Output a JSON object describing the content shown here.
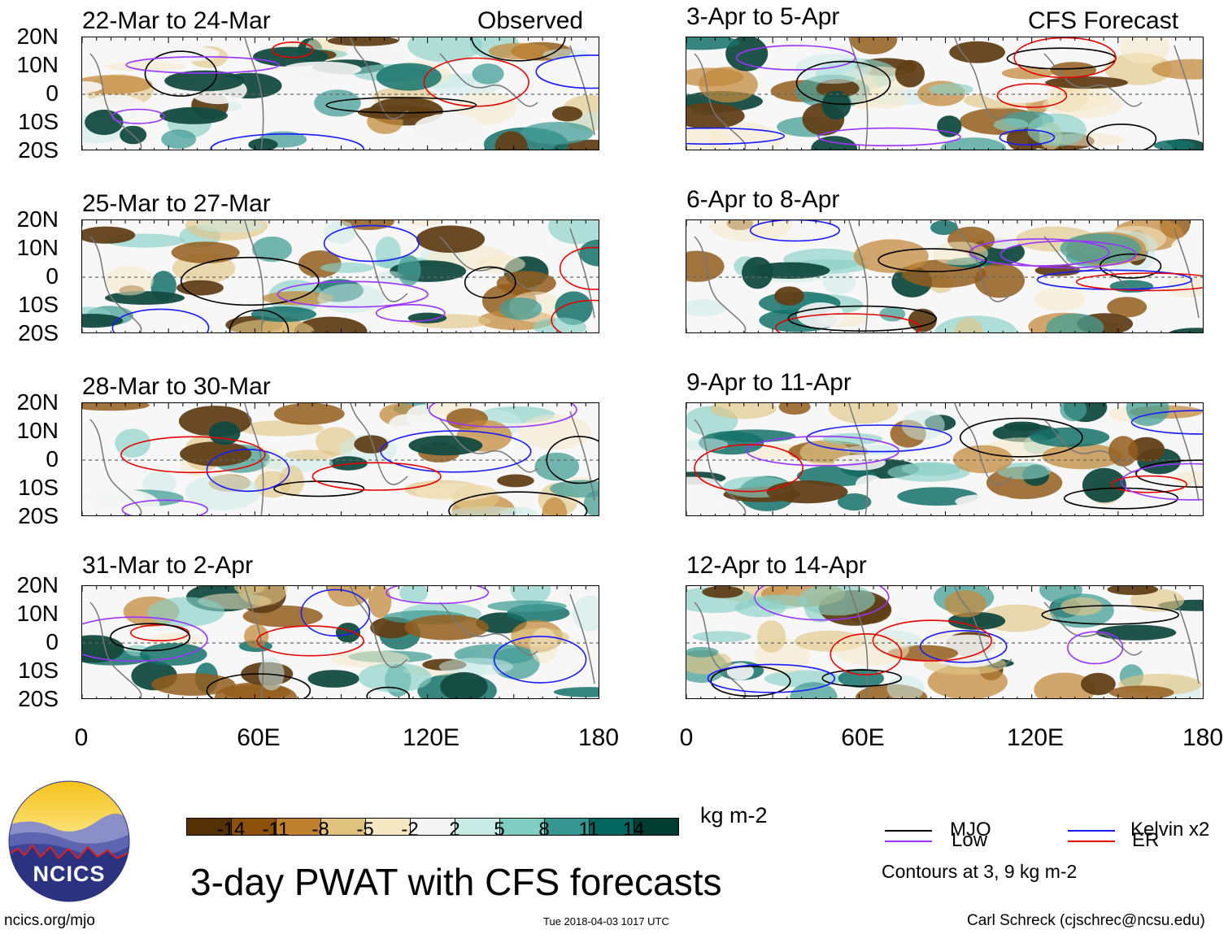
{
  "panels": {
    "obs1": {
      "title": "22-Mar to 24-Mar",
      "source": "Observed"
    },
    "obs2": {
      "title": "25-Mar to 27-Mar"
    },
    "obs3": {
      "title": "28-Mar to 30-Mar"
    },
    "obs4": {
      "title": "31-Mar to 2-Apr"
    },
    "fc1": {
      "title": "3-Apr to 5-Apr",
      "source": "CFS Forecast"
    },
    "fc2": {
      "title": "6-Apr to 8-Apr"
    },
    "fc3": {
      "title": "9-Apr to 11-Apr"
    },
    "fc4": {
      "title": "12-Apr to 14-Apr"
    }
  },
  "axes": {
    "lat_labels": [
      "20N",
      "10N",
      "0",
      "10S",
      "20S"
    ],
    "lon_labels": [
      "0",
      "60E",
      "120E",
      "180"
    ]
  },
  "colorbar": {
    "colors": [
      "#543005",
      "#8c510a",
      "#bf812d",
      "#dfc27d",
      "#f6e8c3",
      "#f5f5f5",
      "#c7eae5",
      "#80cdc1",
      "#35978f",
      "#01665e",
      "#003c30"
    ],
    "labels": [
      "-14",
      "-11",
      "-8",
      "-5",
      "-2",
      "2",
      "5",
      "8",
      "11",
      "14"
    ],
    "units": "kg m-2"
  },
  "main_title": "3-day PWAT with CFS forecasts",
  "legend": {
    "mjo": {
      "label": "MJO",
      "color": "#000000"
    },
    "kelvin": {
      "label": "Kelvin x2",
      "color": "#1a1aff"
    },
    "low": {
      "label": "Low",
      "color": "#9933ff"
    },
    "er": {
      "label": "ER",
      "color": "#e60000"
    },
    "note": "Contours at 3, 9 kg m-2"
  },
  "logo": {
    "text": "NCICS"
  },
  "footer": {
    "url": "ncics.org/mjo",
    "timestamp": "Tue 2018-04-03 1017 UTC",
    "credit": "Carl Schreck (cjschrec@ncsu.edu)"
  }
}
